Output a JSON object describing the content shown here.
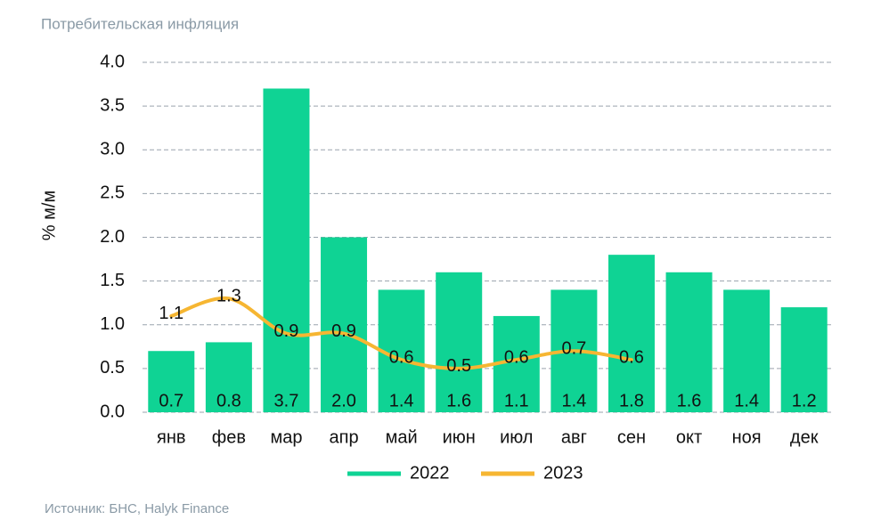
{
  "chart_data": {
    "type": "bar",
    "title": "Потребительская инфляция",
    "y_axis_label": "% м/м",
    "source": "Источник: БНС, Halyk Finance",
    "categories": [
      "янв",
      "фев",
      "мар",
      "апр",
      "май",
      "июн",
      "июл",
      "авг",
      "сен",
      "окт",
      "ноя",
      "дек"
    ],
    "series": [
      {
        "name": "2022",
        "type": "bar",
        "color": "#0fd394",
        "values": [
          0.7,
          0.8,
          3.7,
          2.0,
          1.4,
          1.6,
          1.1,
          1.4,
          1.8,
          1.6,
          1.4,
          1.2
        ],
        "value_labels": [
          "0.7",
          "0.8",
          "3.7",
          "2.0",
          "1.4",
          "1.6",
          "1.1",
          "1.4",
          "1.8",
          "1.6",
          "1.4",
          "1.2"
        ]
      },
      {
        "name": "2023",
        "type": "line",
        "color": "#f6b632",
        "values": [
          1.1,
          1.3,
          0.9,
          0.9,
          0.6,
          0.5,
          0.6,
          0.7,
          0.6,
          null,
          null,
          null
        ]
      }
    ],
    "ylim": [
      0,
      4
    ],
    "yticks": [
      {
        "value": 0,
        "label": "0.0"
      },
      0.5,
      {
        "value": 1,
        "label": "1.0"
      },
      1.5,
      {
        "value": 2,
        "label": "2.0"
      },
      2.5,
      {
        "value": 3,
        "label": "3.0"
      },
      3.5,
      {
        "value": 4,
        "label": "4.0"
      }
    ],
    "grid": true,
    "legend": "bottom"
  }
}
